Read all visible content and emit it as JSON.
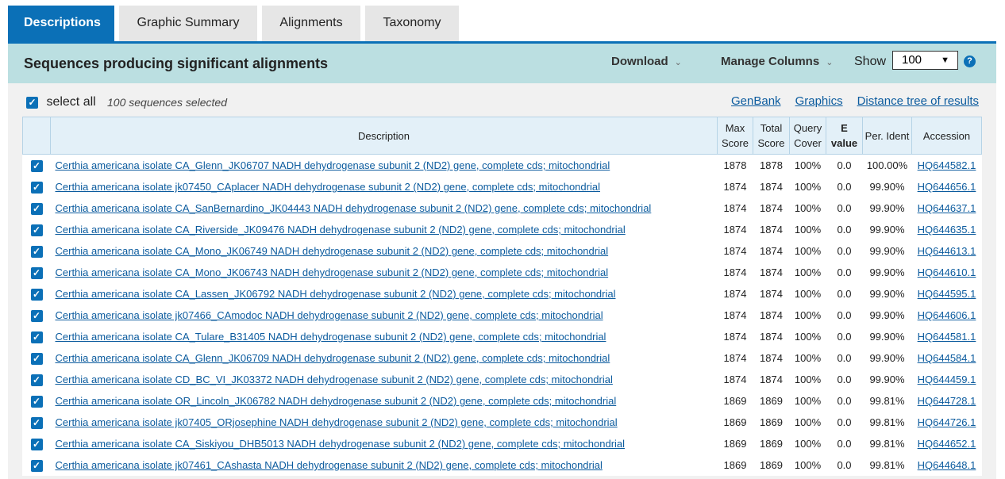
{
  "tabs": [
    "Descriptions",
    "Graphic Summary",
    "Alignments",
    "Taxonomy"
  ],
  "header": {
    "title": "Sequences producing significant alignments",
    "download": "Download",
    "manage_columns": "Manage Columns",
    "show": "Show",
    "show_value": "100",
    "help": "?"
  },
  "toolbar": {
    "select_all": "select all",
    "selected": "100 sequences selected",
    "links": [
      "GenBank",
      "Graphics",
      "Distance tree of results"
    ]
  },
  "table": {
    "columns": [
      "Description",
      "Max Score",
      "Total Score",
      "Query Cover",
      "E value",
      "Per. Ident",
      "Accession"
    ],
    "rows": [
      [
        "Certhia americana isolate CA_Glenn_JK06707 NADH dehydrogenase subunit 2 (ND2) gene, complete cds; mitochondrial",
        "1878",
        "1878",
        "100%",
        "0.0",
        "100.00%",
        "HQ644582.1"
      ],
      [
        "Certhia americana isolate jk07450_CAplacer NADH dehydrogenase subunit 2 (ND2) gene, complete cds; mitochondrial",
        "1874",
        "1874",
        "100%",
        "0.0",
        "99.90%",
        "HQ644656.1"
      ],
      [
        "Certhia americana isolate CA_SanBernardino_JK04443 NADH dehydrogenase subunit 2 (ND2) gene, complete cds; mitochondrial",
        "1874",
        "1874",
        "100%",
        "0.0",
        "99.90%",
        "HQ644637.1"
      ],
      [
        "Certhia americana isolate CA_Riverside_JK09476 NADH dehydrogenase subunit 2 (ND2) gene, complete cds; mitochondrial",
        "1874",
        "1874",
        "100%",
        "0.0",
        "99.90%",
        "HQ644635.1"
      ],
      [
        "Certhia americana isolate CA_Mono_JK06749 NADH dehydrogenase subunit 2 (ND2) gene, complete cds; mitochondrial",
        "1874",
        "1874",
        "100%",
        "0.0",
        "99.90%",
        "HQ644613.1"
      ],
      [
        "Certhia americana isolate CA_Mono_JK06743 NADH dehydrogenase subunit 2 (ND2) gene, complete cds; mitochondrial",
        "1874",
        "1874",
        "100%",
        "0.0",
        "99.90%",
        "HQ644610.1"
      ],
      [
        "Certhia americana isolate CA_Lassen_JK06792 NADH dehydrogenase subunit 2 (ND2) gene, complete cds; mitochondrial",
        "1874",
        "1874",
        "100%",
        "0.0",
        "99.90%",
        "HQ644595.1"
      ],
      [
        "Certhia americana isolate jk07466_CAmodoc NADH dehydrogenase subunit 2 (ND2) gene, complete cds; mitochondrial",
        "1874",
        "1874",
        "100%",
        "0.0",
        "99.90%",
        "HQ644606.1"
      ],
      [
        "Certhia americana isolate CA_Tulare_B31405 NADH dehydrogenase subunit 2 (ND2) gene, complete cds; mitochondrial",
        "1874",
        "1874",
        "100%",
        "0.0",
        "99.90%",
        "HQ644581.1"
      ],
      [
        "Certhia americana isolate CA_Glenn_JK06709 NADH dehydrogenase subunit 2 (ND2) gene, complete cds; mitochondrial",
        "1874",
        "1874",
        "100%",
        "0.0",
        "99.90%",
        "HQ644584.1"
      ],
      [
        "Certhia americana isolate CD_BC_VI_JK03372 NADH dehydrogenase subunit 2 (ND2) gene, complete cds; mitochondrial",
        "1874",
        "1874",
        "100%",
        "0.0",
        "99.90%",
        "HQ644459.1"
      ],
      [
        "Certhia americana isolate OR_Lincoln_JK06782 NADH dehydrogenase subunit 2 (ND2) gene, complete cds; mitochondrial",
        "1869",
        "1869",
        "100%",
        "0.0",
        "99.81%",
        "HQ644728.1"
      ],
      [
        "Certhia americana isolate jk07405_ORjosephine NADH dehydrogenase subunit 2 (ND2) gene, complete cds; mitochondrial",
        "1869",
        "1869",
        "100%",
        "0.0",
        "99.81%",
        "HQ644726.1"
      ],
      [
        "Certhia americana isolate CA_Siskiyou_DHB5013 NADH dehydrogenase subunit 2 (ND2) gene, complete cds; mitochondrial",
        "1869",
        "1869",
        "100%",
        "0.0",
        "99.81%",
        "HQ644652.1"
      ],
      [
        "Certhia americana isolate jk07461_CAshasta NADH dehydrogenase subunit 2 (ND2) gene, complete cds; mitochondrial",
        "1869",
        "1869",
        "100%",
        "0.0",
        "99.81%",
        "HQ644648.1"
      ]
    ]
  }
}
